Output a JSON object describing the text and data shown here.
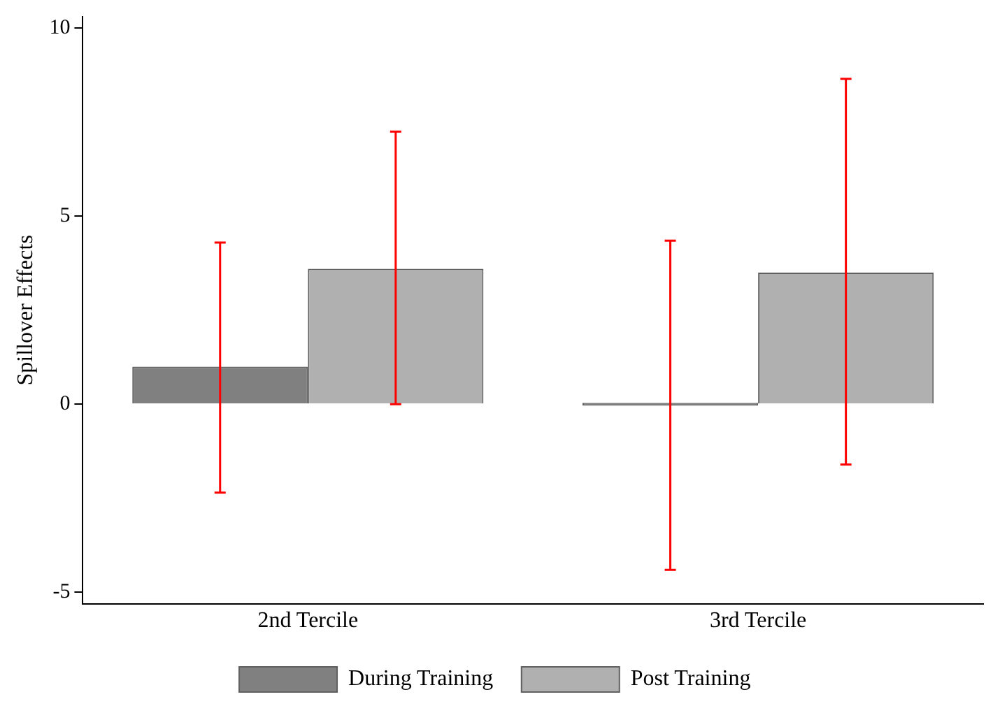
{
  "chart_data": {
    "type": "bar",
    "ylabel": "Spillover Effects",
    "categories": [
      "2nd Tercile",
      "3rd Tercile"
    ],
    "series": [
      {
        "name": "During Training",
        "color": "#808080",
        "values": [
          1.0,
          0.0
        ],
        "errors": [
          [
            -2.35,
            4.3
          ],
          [
            -4.4,
            4.35
          ]
        ]
      },
      {
        "name": "Post Training",
        "color": "#b0b0b0",
        "values": [
          3.6,
          3.5
        ],
        "errors": [
          [
            0.0,
            7.25
          ],
          [
            -1.6,
            8.65
          ]
        ]
      }
    ],
    "ylim": [
      -5.3,
      10.3
    ],
    "yticks": [
      -5,
      0,
      5,
      10
    ],
    "grid": false,
    "legend": "bottom"
  }
}
